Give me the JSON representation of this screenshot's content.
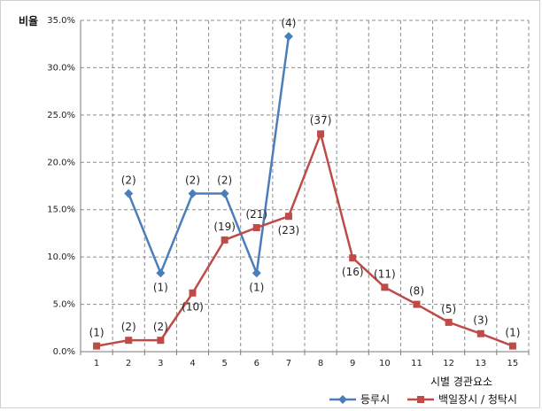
{
  "chart_data": {
    "type": "line",
    "xlabel": "시별 경관요소",
    "ylabel": "비율",
    "x_ticks": [
      "1",
      "2",
      "3",
      "4",
      "5",
      "6",
      "7",
      "8",
      "9",
      "10",
      "11",
      "12",
      "13",
      "15"
    ],
    "y_ticks": [
      "0.0%",
      "5.0%",
      "10.0%",
      "15.0%",
      "20.0%",
      "25.0%",
      "30.0%",
      "35.0%"
    ],
    "ylim": [
      0,
      35
    ],
    "grid": true,
    "legend_position": "bottom-right",
    "series": [
      {
        "name": "등루시",
        "color": "#4a7ebb",
        "marker": "diamond",
        "points": [
          {
            "x": "2",
            "y": 16.7,
            "label": "(2)",
            "label_pos": "above"
          },
          {
            "x": "3",
            "y": 8.3,
            "label": "(1)",
            "label_pos": "below"
          },
          {
            "x": "4",
            "y": 16.7,
            "label": "(2)",
            "label_pos": "above"
          },
          {
            "x": "5",
            "y": 16.7,
            "label": "(2)",
            "label_pos": "above"
          },
          {
            "x": "6",
            "y": 8.3,
            "label": "(1)",
            "label_pos": "below"
          },
          {
            "x": "7",
            "y": 33.3,
            "label": "(4)",
            "label_pos": "above"
          }
        ]
      },
      {
        "name": "백일장시 / 청탁시",
        "color": "#be4b48",
        "marker": "square",
        "points": [
          {
            "x": "1",
            "y": 0.6,
            "label": "(1)",
            "label_pos": "above"
          },
          {
            "x": "2",
            "y": 1.2,
            "label": "(2)",
            "label_pos": "above"
          },
          {
            "x": "3",
            "y": 1.2,
            "label": "(2)",
            "label_pos": "above"
          },
          {
            "x": "4",
            "y": 6.2,
            "label": "(10)",
            "label_pos": "below"
          },
          {
            "x": "5",
            "y": 11.8,
            "label": "(19)",
            "label_pos": "above"
          },
          {
            "x": "6",
            "y": 13.1,
            "label": "(21)",
            "label_pos": "above"
          },
          {
            "x": "7",
            "y": 14.3,
            "label": "(23)",
            "label_pos": "below"
          },
          {
            "x": "8",
            "y": 23.0,
            "label": "(37)",
            "label_pos": "above"
          },
          {
            "x": "9",
            "y": 9.9,
            "label": "(16)",
            "label_pos": "below"
          },
          {
            "x": "10",
            "y": 6.8,
            "label": "(11)",
            "label_pos": "above"
          },
          {
            "x": "11",
            "y": 5.0,
            "label": "(8)",
            "label_pos": "above"
          },
          {
            "x": "12",
            "y": 3.1,
            "label": "(5)",
            "label_pos": "above"
          },
          {
            "x": "13",
            "y": 1.9,
            "label": "(3)",
            "label_pos": "above"
          },
          {
            "x": "15",
            "y": 0.6,
            "label": "(1)",
            "label_pos": "above"
          }
        ]
      }
    ]
  }
}
